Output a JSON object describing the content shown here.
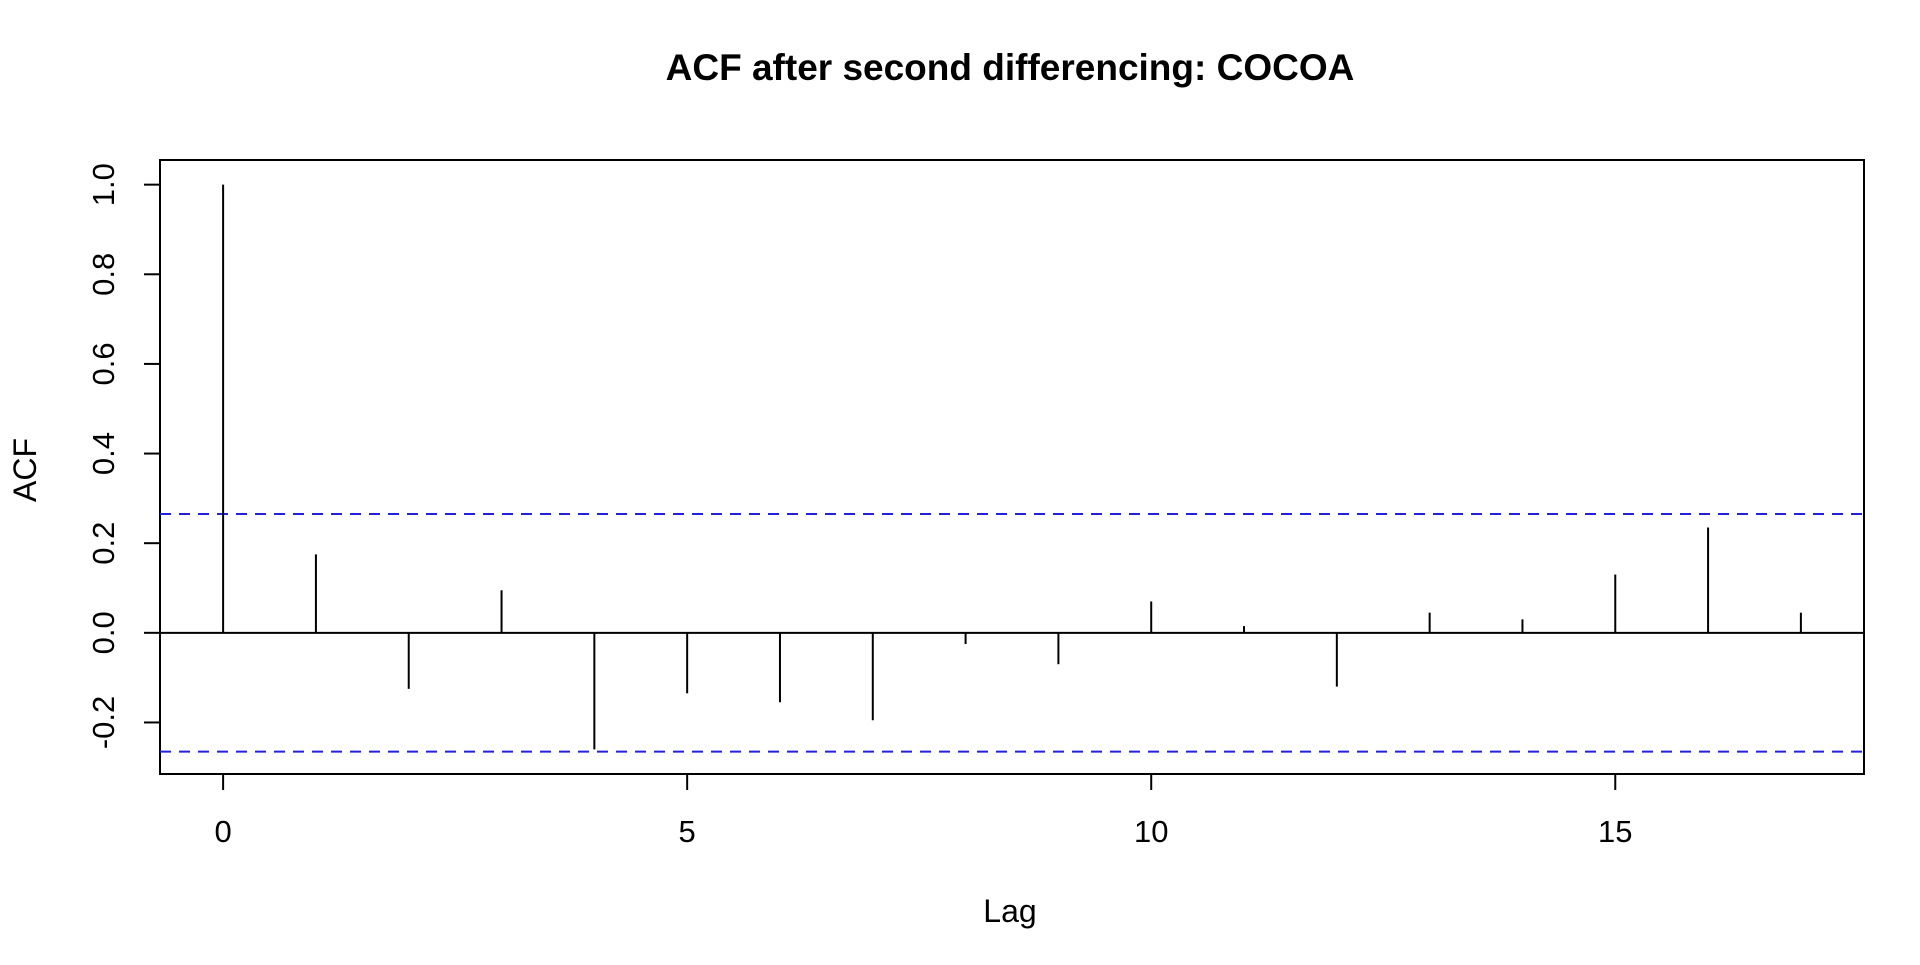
{
  "chart_data": {
    "type": "bar",
    "title": "ACF after second differencing: COCOA",
    "xlabel": "Lag",
    "ylabel": "ACF",
    "xlim": [
      -0.68,
      17.68
    ],
    "ylim": [
      -0.315,
      1.055
    ],
    "x_ticks": [
      0,
      5,
      10,
      15
    ],
    "x_tick_labels": [
      "0",
      "5",
      "10",
      "15"
    ],
    "y_ticks": [
      -0.2,
      0.0,
      0.2,
      0.4,
      0.6,
      0.8,
      1.0
    ],
    "y_tick_labels": [
      "-0.2",
      "0.0",
      "0.2",
      "0.4",
      "0.6",
      "0.8",
      "1.0"
    ],
    "lags": [
      0,
      1,
      2,
      3,
      4,
      5,
      6,
      7,
      8,
      9,
      10,
      11,
      12,
      13,
      14,
      15,
      16,
      17
    ],
    "values": [
      1.0,
      0.175,
      -0.125,
      0.095,
      -0.26,
      -0.135,
      -0.155,
      -0.195,
      -0.025,
      -0.07,
      0.07,
      0.015,
      -0.12,
      0.045,
      0.03,
      0.13,
      0.235,
      0.045
    ],
    "confidence_bound": 0.265,
    "zero_line": true,
    "grid": false,
    "legend": "none",
    "colors": {
      "bars": "#000000",
      "confidence": "#2222dd",
      "axes": "#000000"
    }
  }
}
